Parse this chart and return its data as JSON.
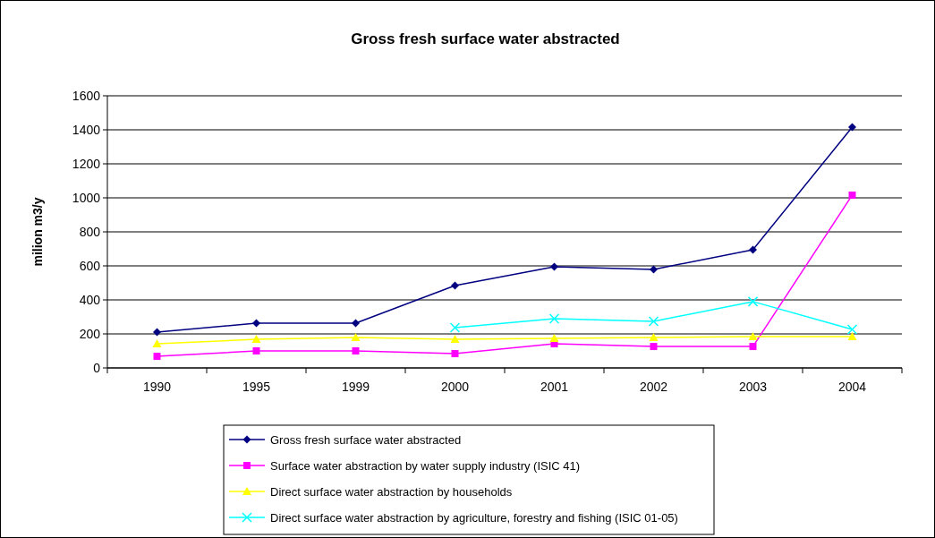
{
  "chart_data": {
    "type": "line",
    "title": "Gross fresh surface water abstracted",
    "ylabel": "milion m3/y",
    "categories": [
      "1990",
      "1995",
      "1999",
      "2000",
      "2001",
      "2002",
      "2003",
      "2004"
    ],
    "ylim": [
      0,
      1600
    ],
    "yticks": [
      0,
      200,
      400,
      600,
      800,
      1000,
      1200,
      1400,
      1600
    ],
    "grid": "y",
    "legend": "bottom",
    "series": [
      {
        "name": "Gross fresh surface water abstracted",
        "color": "#000080",
        "marker": "diamond",
        "values": [
          210,
          263,
          263,
          484,
          595,
          579,
          695,
          1416
        ]
      },
      {
        "name": "Surface water abstraction by water supply industry (ISIC 41)",
        "color": "#ff00ff",
        "marker": "square",
        "values": [
          68,
          100,
          100,
          84,
          142,
          126,
          126,
          1016
        ]
      },
      {
        "name": "Direct surface water abstraction by households",
        "color": "#ffff00",
        "marker": "triangle",
        "values": [
          142,
          168,
          179,
          168,
          174,
          179,
          184,
          184
        ]
      },
      {
        "name": "Direct surface water abstraction by agriculture, forestry and fishing  (ISIC 01-05)",
        "color": "#00ffff",
        "marker": "cross",
        "values": [
          null,
          null,
          null,
          237,
          289,
          274,
          390,
          226
        ]
      }
    ]
  }
}
